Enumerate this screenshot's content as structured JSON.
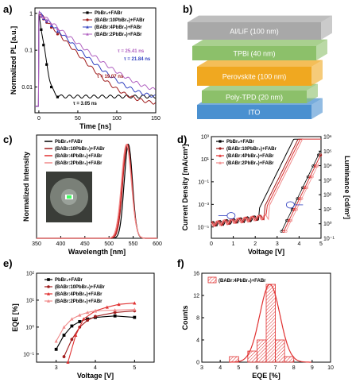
{
  "panel_labels": [
    "a)",
    "b)",
    "c)",
    "d)",
    "e)",
    "f)"
  ],
  "colors": {
    "pbbr2": "#000000",
    "x10": "#a01c1c",
    "x4": "#e03030",
    "x2": "#f08a8a",
    "x2_a": "#b060c0",
    "x4_a": "#3040c0",
    "hist": "#e03030"
  },
  "device": {
    "layers": [
      {
        "name": "Al/LiF (100 nm)",
        "color": "#a8a8a8"
      },
      {
        "name": "TPBi (40 nm)",
        "color": "#8cc06a"
      },
      {
        "name": "Perovskite (100 nm)",
        "color": "#f0a820"
      },
      {
        "name": "Poly-TPD (20 nm)",
        "color": "#8cc06a"
      },
      {
        "name": "ITO",
        "color": "#4a90d0"
      }
    ]
  },
  "chart_data": [
    {
      "panel": "a)",
      "type": "line",
      "xlabel": "Time [ns]",
      "ylabel": "Normalized PL [a.u.]",
      "xlim": [
        -5,
        150
      ],
      "ylim": [
        0.002,
        1.4
      ],
      "yscale": "log",
      "xticks": [
        "0",
        "50",
        "100",
        "150"
      ],
      "yticks": [
        "1",
        "0.1",
        "0.01"
      ],
      "legend_position": "top-right",
      "series": [
        {
          "name": "PbBr₂+FABr",
          "tau": 3.05,
          "floor": 0.005
        },
        {
          "name": "(BABr:10PbBr₂)+FABr",
          "tau": 19.07,
          "floor": 0.003
        },
        {
          "name": "(BABr:4PbBr₂)+FABr",
          "tau": 21.84,
          "floor": 0.004
        },
        {
          "name": "(BABr:2PbBr₂)+FABr",
          "tau": 25.41,
          "floor": 0.005
        }
      ],
      "annotations": [
        "τ = 25.41 ns",
        "τ = 21.84 ns",
        "τ = 19.07 ns",
        "τ = 3.05 ns"
      ]
    },
    {
      "panel": "c)",
      "type": "line",
      "xlabel": "Wavelength [nm]",
      "ylabel": "Normalized Intensity",
      "xlim": [
        350,
        600
      ],
      "ylim": [
        0,
        1.1
      ],
      "xticks": [
        "350",
        "400",
        "450",
        "500",
        "550",
        "600"
      ],
      "legend_position": "top-left",
      "series": [
        {
          "name": "PbBr₂+FABr",
          "peak": 540,
          "fwhm": 20
        },
        {
          "name": "(BABr:10PbBr₂)+FABr",
          "peak": 538,
          "fwhm": 22
        },
        {
          "name": "(BABr:4PbBr₂)+FABr",
          "peak": 537,
          "fwhm": 23
        },
        {
          "name": "(BABr:2PbBr₂)+FABr",
          "peak": 536,
          "fwhm": 24
        }
      ]
    },
    {
      "panel": "d)",
      "type": "line",
      "xlabel": "Voltage [V]",
      "ylabel": "Current Density [mA/cm²]",
      "y2label": "Luminance [cd/m²]",
      "xlim": [
        0,
        5
      ],
      "ylim": [
        1e-06,
        1000
      ],
      "y2lim": [
        0.1,
        1000000
      ],
      "yscale": "log",
      "xticks": [
        "0",
        "1",
        "2",
        "3",
        "4",
        "5"
      ],
      "yticks": [
        "10³",
        "10¹",
        "10⁻¹",
        "10⁻³",
        "10⁻⁵"
      ],
      "y2ticks": [
        "10⁶",
        "10⁵",
        "10⁴",
        "10³",
        "10²",
        "10¹",
        "10⁰",
        "10⁻¹"
      ],
      "legend_position": "top-left",
      "series": [
        {
          "name": "PbBr₂+FABr",
          "j_turn": 2.2,
          "l_turn": 3.2
        },
        {
          "name": "(BABr:10PbBr₂)+FABr",
          "j_turn": 2.4,
          "l_turn": 3.3
        },
        {
          "name": "(BABr:4PbBr₂)+FABr",
          "j_turn": 2.5,
          "l_turn": 3.3
        },
        {
          "name": "(BABr:2PbBr₂)+FABr",
          "j_turn": 2.6,
          "l_turn": 3.4
        }
      ]
    },
    {
      "panel": "e)",
      "type": "line",
      "xlabel": "Voltage [V]",
      "ylabel": "EQE [%]",
      "xlim": [
        2.5,
        5.5
      ],
      "ylim": [
        0.05,
        100
      ],
      "yscale": "log",
      "xticks": [
        "3",
        "4",
        "5"
      ],
      "yticks": [
        "10²",
        "10¹",
        "10⁰",
        "10⁻¹"
      ],
      "legend_position": "top-left",
      "series": [
        {
          "name": "PbBr₂+FABr",
          "x": [
            3.0,
            3.2,
            3.4,
            3.6,
            3.8,
            4.0,
            4.5,
            5.0
          ],
          "y": [
            0.15,
            0.5,
            1.1,
            1.6,
            2.0,
            2.3,
            2.6,
            2.3
          ]
        },
        {
          "name": "(BABr:10PbBr₂)+FABr",
          "x": [
            3.2,
            3.4,
            3.6,
            3.8,
            4.0,
            4.5,
            5.0
          ],
          "y": [
            0.08,
            0.35,
            1.0,
            1.8,
            2.5,
            3.5,
            4.0
          ]
        },
        {
          "name": "(BABr:4PbBr₂)+FABr",
          "x": [
            3.3,
            3.5,
            3.7,
            4.0,
            4.3,
            4.6,
            5.0
          ],
          "y": [
            0.05,
            0.5,
            2.0,
            4.0,
            5.5,
            7.0,
            7.8
          ]
        },
        {
          "name": "(BABr:2PbBr₂)+FABr",
          "x": [
            3.0,
            3.2,
            3.4,
            3.6,
            3.8,
            4.0,
            4.5,
            5.0
          ],
          "y": [
            0.3,
            1.0,
            2.0,
            2.8,
            3.5,
            4.0,
            4.3,
            4.5
          ]
        }
      ]
    },
    {
      "panel": "f)",
      "type": "bar",
      "xlabel": "EQE [%]",
      "ylabel": "Counts",
      "xlim": [
        3,
        10
      ],
      "ylim": [
        0,
        16
      ],
      "xticks": [
        "3",
        "4",
        "5",
        "6",
        "7",
        "8",
        "9",
        "10"
      ],
      "yticks": [
        "0",
        "4",
        "8",
        "12",
        "16"
      ],
      "legend_position": "top-left",
      "legend": "(BABr:4PbBr₂)+FABr",
      "bin_centers": [
        4.75,
        5.25,
        5.75,
        6.25,
        6.75,
        7.25,
        7.75
      ],
      "values": [
        1,
        0,
        2,
        4,
        14,
        4,
        1
      ],
      "fit": {
        "mean": 6.7,
        "sigma": 0.55,
        "peak": 14
      }
    }
  ]
}
